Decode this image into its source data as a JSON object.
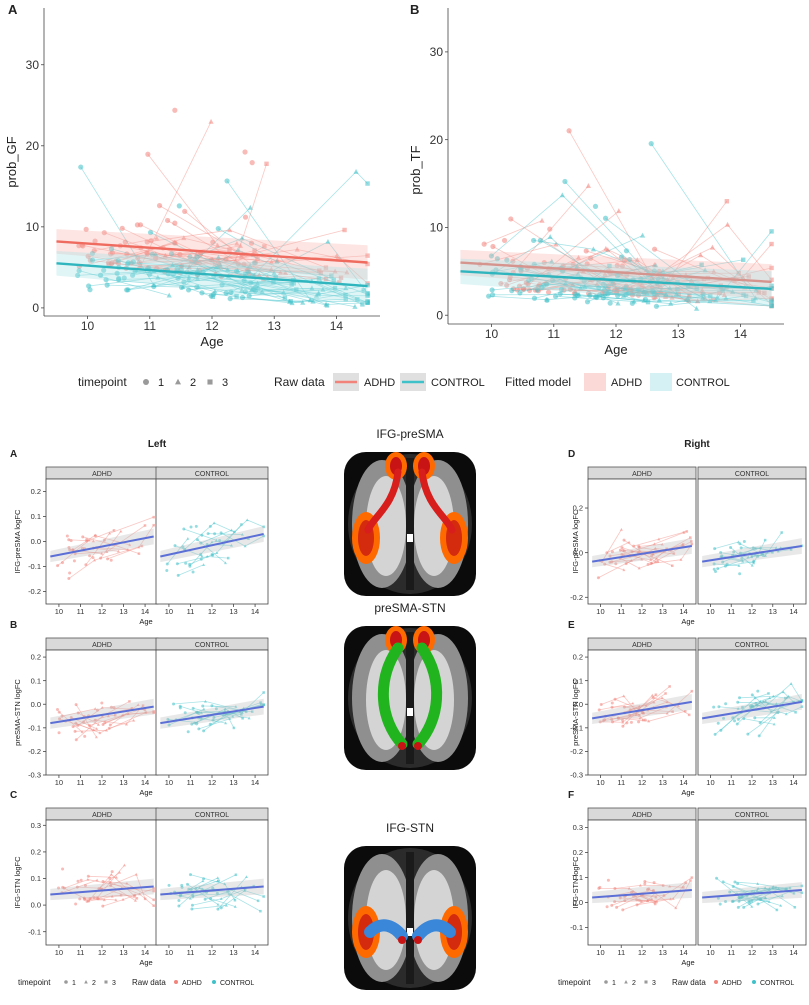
{
  "colors": {
    "adhd": "#f2837b",
    "control": "#3fc1c9",
    "fit_adhd": "#ef6a5f",
    "fit_control": "#2fb5bd",
    "fit_blue": "#5b6fd6",
    "ribbon": "#bdbdbd",
    "tract_red": "#d81d1d",
    "tract_green": "#22b41f",
    "tract_blue": "#3a86d8",
    "cortex_orange": "#ff6a00"
  },
  "chart_data": [
    {
      "id": "top-A",
      "type": "scatter",
      "panel_label": "A",
      "xlabel": "Age",
      "ylabel": "prob_GF",
      "xlim": [
        9.3,
        14.7
      ],
      "ylim": [
        -1,
        37
      ],
      "xticks": [
        "10",
        "11",
        "12",
        "13",
        "14"
      ],
      "yticks": [
        "0",
        "10",
        "20",
        "30"
      ],
      "series": [
        {
          "name": "ADHD",
          "fit": {
            "x": [
              9.5,
              14.5
            ],
            "y": [
              8.2,
              5.6
            ]
          }
        },
        {
          "name": "CONTROL",
          "fit": {
            "x": [
              9.5,
              14.5
            ],
            "y": [
              5.5,
              2.7
            ]
          }
        }
      ]
    },
    {
      "id": "top-B",
      "type": "scatter",
      "panel_label": "B",
      "xlabel": "Age",
      "ylabel": "prob_TF",
      "xlim": [
        9.3,
        14.7
      ],
      "ylim": [
        -1,
        35
      ],
      "xticks": [
        "10",
        "11",
        "12",
        "13",
        "14"
      ],
      "yticks": [
        "0",
        "10",
        "20",
        "30"
      ],
      "series": [
        {
          "name": "ADHD",
          "fit": {
            "x": [
              9.5,
              14.5
            ],
            "y": [
              6.0,
              3.8
            ]
          }
        },
        {
          "name": "CONTROL",
          "fit": {
            "x": [
              9.5,
              14.5
            ],
            "y": [
              5.0,
              3.0
            ]
          }
        }
      ]
    },
    {
      "id": "left-A",
      "type": "scatter",
      "panel_label": "A",
      "column_title": "Left",
      "facets": [
        "ADHD",
        "CONTROL"
      ],
      "xlabel": "Age",
      "ylabel": "IFG-preSMA logFC",
      "xlim": [
        9.4,
        14.6
      ],
      "ylim": [
        -0.25,
        0.25
      ],
      "xticks": [
        "10",
        "11",
        "12",
        "13",
        "14"
      ],
      "yticks": [
        "-0.2",
        "-0.1",
        "0.0",
        "0.1",
        "0.2"
      ],
      "fits": [
        {
          "x": [
            9.6,
            14.4
          ],
          "y": [
            -0.06,
            0.02
          ]
        },
        {
          "x": [
            9.6,
            14.4
          ],
          "y": [
            -0.06,
            0.03
          ]
        }
      ]
    },
    {
      "id": "left-B",
      "type": "scatter",
      "panel_label": "B",
      "facets": [
        "ADHD",
        "CONTROL"
      ],
      "xlabel": "Age",
      "ylabel": "preSMA-STN logFC",
      "xlim": [
        9.4,
        14.6
      ],
      "ylim": [
        -0.3,
        0.23
      ],
      "xticks": [
        "10",
        "11",
        "12",
        "13",
        "14"
      ],
      "yticks": [
        "-0.3",
        "-0.2",
        "-0.1",
        "0.0",
        "0.1",
        "0.2"
      ],
      "fits": [
        {
          "x": [
            9.6,
            14.4
          ],
          "y": [
            -0.08,
            -0.01
          ]
        },
        {
          "x": [
            9.6,
            14.4
          ],
          "y": [
            -0.08,
            -0.01
          ]
        }
      ]
    },
    {
      "id": "left-C",
      "type": "scatter",
      "panel_label": "C",
      "facets": [
        "ADHD",
        "CONTROL"
      ],
      "xlabel": "Age",
      "ylabel": "IFG-STN logFC",
      "xlim": [
        9.4,
        14.6
      ],
      "ylim": [
        -0.15,
        0.32
      ],
      "xticks": [
        "10",
        "11",
        "12",
        "13",
        "14"
      ],
      "yticks": [
        "-0.1",
        "0.0",
        "0.1",
        "0.2",
        "0.3"
      ],
      "fits": [
        {
          "x": [
            9.6,
            14.4
          ],
          "y": [
            0.04,
            0.07
          ]
        },
        {
          "x": [
            9.6,
            14.4
          ],
          "y": [
            0.04,
            0.07
          ]
        }
      ]
    },
    {
      "id": "right-D",
      "type": "scatter",
      "panel_label": "D",
      "column_title": "Right",
      "facets": [
        "ADHD",
        "CONTROL"
      ],
      "xlabel": "Age",
      "ylabel": "IFG-preSMA logFC",
      "xlim": [
        9.4,
        14.6
      ],
      "ylim": [
        -0.23,
        0.33
      ],
      "xticks": [
        "10",
        "11",
        "12",
        "13",
        "14"
      ],
      "yticks": [
        "-0.2",
        "0.0",
        "0.2"
      ],
      "fits": [
        {
          "x": [
            9.6,
            14.4
          ],
          "y": [
            -0.04,
            0.03
          ]
        },
        {
          "x": [
            9.6,
            14.4
          ],
          "y": [
            -0.04,
            0.03
          ]
        }
      ]
    },
    {
      "id": "right-E",
      "type": "scatter",
      "panel_label": "E",
      "facets": [
        "ADHD",
        "CONTROL"
      ],
      "xlabel": "Age",
      "ylabel": "preSMA-STN logFC",
      "xlim": [
        9.4,
        14.6
      ],
      "ylim": [
        -0.3,
        0.23
      ],
      "xticks": [
        "10",
        "11",
        "12",
        "13",
        "14"
      ],
      "yticks": [
        "-0.3",
        "-0.2",
        "-0.1",
        "0.0",
        "0.1",
        "0.2"
      ],
      "fits": [
        {
          "x": [
            9.6,
            14.4
          ],
          "y": [
            -0.06,
            0.01
          ]
        },
        {
          "x": [
            9.6,
            14.4
          ],
          "y": [
            -0.06,
            0.01
          ]
        }
      ]
    },
    {
      "id": "right-F",
      "type": "scatter",
      "panel_label": "F",
      "facets": [
        "ADHD",
        "CONTROL"
      ],
      "xlabel": "Age",
      "ylabel": "IFG-STN logFC",
      "xlim": [
        9.4,
        14.6
      ],
      "ylim": [
        -0.17,
        0.33
      ],
      "xticks": [
        "10",
        "11",
        "12",
        "13",
        "14"
      ],
      "yticks": [
        "-0.1",
        "0.0",
        "0.1",
        "0.2",
        "0.3"
      ],
      "fits": [
        {
          "x": [
            9.6,
            14.4
          ],
          "y": [
            0.02,
            0.05
          ]
        },
        {
          "x": [
            9.6,
            14.4
          ],
          "y": [
            0.02,
            0.05
          ]
        }
      ]
    }
  ],
  "top_legend": {
    "timepoint_title": "timepoint",
    "timepoints": [
      "1",
      "2",
      "3"
    ],
    "raw_title": "Raw data",
    "raw_groups": [
      "ADHD",
      "CONTROL"
    ],
    "fitted_title": "Fitted model",
    "fitted_groups": [
      "ADHD",
      "CONTROL"
    ]
  },
  "bottom_legend": {
    "timepoint_title": "timepoint",
    "timepoints": [
      "1",
      "2",
      "3"
    ],
    "raw_title": "Raw data",
    "raw_groups": [
      "ADHD",
      "CONTROL"
    ]
  },
  "brains": [
    {
      "title": "IFG-preSMA",
      "tract": "red"
    },
    {
      "title": "preSMA-STN",
      "tract": "green"
    },
    {
      "title": "IFG-STN",
      "tract": "blue"
    }
  ]
}
